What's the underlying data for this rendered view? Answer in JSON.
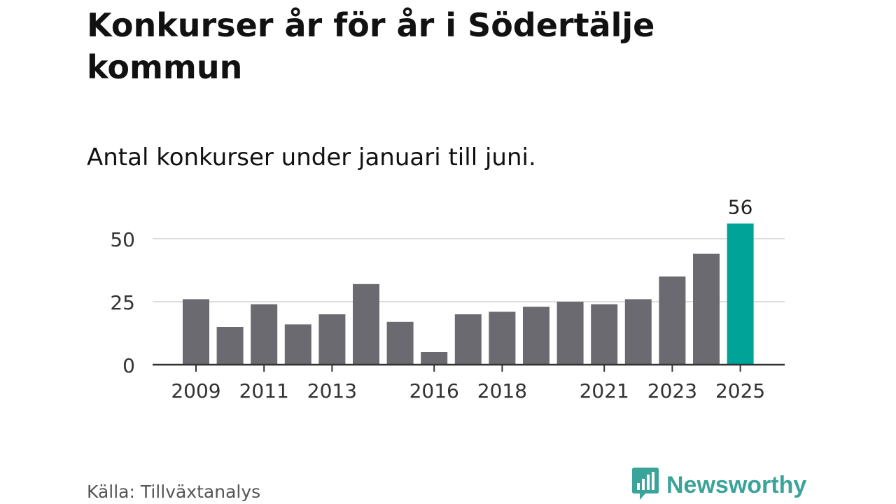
{
  "header": {
    "title": "Konkurser år för år i Södertälje kommun",
    "subtitle": "Antal konkurser under januari till juni."
  },
  "footer": {
    "source": "Källa: Tillväxtanalys",
    "brand": "Newsworthy",
    "brand_icon": "newsworthy-logo-icon"
  },
  "colors": {
    "bar": "#6b6a70",
    "highlight": "#00a398",
    "grid": "#dddddd",
    "axis": "#333333",
    "brand": "#3aa39a"
  },
  "chart_data": {
    "type": "bar",
    "title": "Konkurser år för år i Södertälje kommun",
    "subtitle": "Antal konkurser under januari till juni.",
    "categories": [
      "2009",
      "2010",
      "2011",
      "2012",
      "2013",
      "2014",
      "2015",
      "2016",
      "2017",
      "2018",
      "2019",
      "2020",
      "2021",
      "2022",
      "2023",
      "2024",
      "2025"
    ],
    "values": [
      26,
      15,
      24,
      16,
      20,
      32,
      17,
      5,
      20,
      21,
      23,
      25,
      24,
      26,
      35,
      44,
      56
    ],
    "x_tick_labels": [
      "2009",
      "2011",
      "2013",
      "2016",
      "2018",
      "2021",
      "2023",
      "2025"
    ],
    "y_ticks": [
      0,
      25,
      50
    ],
    "ylim": [
      0,
      60
    ],
    "highlight_category": "2025",
    "annotations": [
      {
        "category": "2025",
        "label": "56"
      }
    ],
    "grid": true,
    "xlabel": "",
    "ylabel": ""
  }
}
